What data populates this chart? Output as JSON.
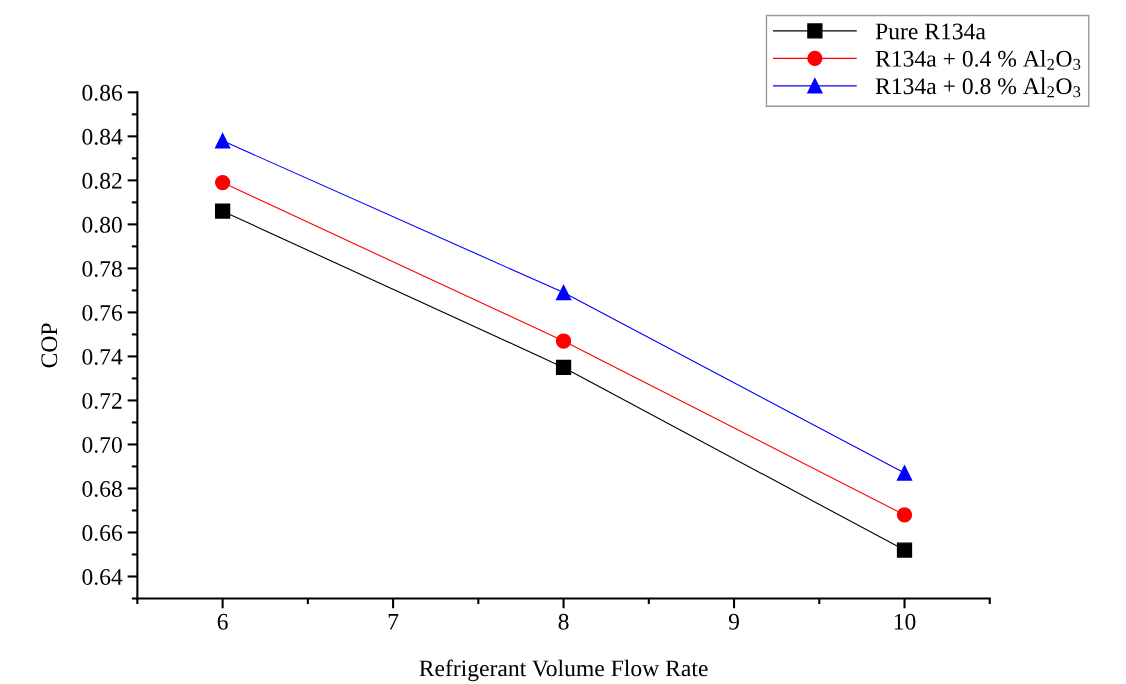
{
  "chart_data": {
    "type": "line",
    "xlabel": "Refrigerant Volume Flow Rate",
    "ylabel": "COP",
    "x": [
      6,
      8,
      10
    ],
    "series": [
      {
        "name": "Pure R134a",
        "color": "#000000",
        "marker": "square",
        "values": [
          0.806,
          0.735,
          0.652
        ]
      },
      {
        "name": "R134a + 0.4 % Al$_{2}$O$_{3}$",
        "color": "#ff0000",
        "marker": "circle",
        "values": [
          0.819,
          0.747,
          0.668
        ]
      },
      {
        "name": "R134a + 0.8 % Al$_{2}$O$_{3}$",
        "color": "#0000ff",
        "marker": "triangle",
        "values": [
          0.838,
          0.769,
          0.687
        ]
      }
    ],
    "xlim": [
      5.5,
      10.5
    ],
    "xticks": [
      6,
      7,
      8,
      9,
      10
    ],
    "ylim": [
      0.63,
      0.86
    ],
    "yticks": [
      {
        "value": 0.64,
        "label": "0.64"
      },
      {
        "value": 0.66,
        "label": "0.66"
      },
      {
        "value": 0.68,
        "label": "0.68"
      },
      {
        "value": 0.7,
        "label": "0.70"
      },
      {
        "value": 0.72,
        "label": "0.72"
      },
      {
        "value": 0.74,
        "label": "0.74"
      },
      {
        "value": 0.76,
        "label": "0.76"
      },
      {
        "value": 0.78,
        "label": "0.78"
      },
      {
        "value": 0.8,
        "label": "0.80"
      },
      {
        "value": 0.82,
        "label": "0.82"
      },
      {
        "value": 0.84,
        "label": "0.84"
      },
      {
        "value": 0.86,
        "label": "0.86"
      }
    ],
    "grid": false,
    "legend": "top right",
    "line_style": "solid"
  }
}
